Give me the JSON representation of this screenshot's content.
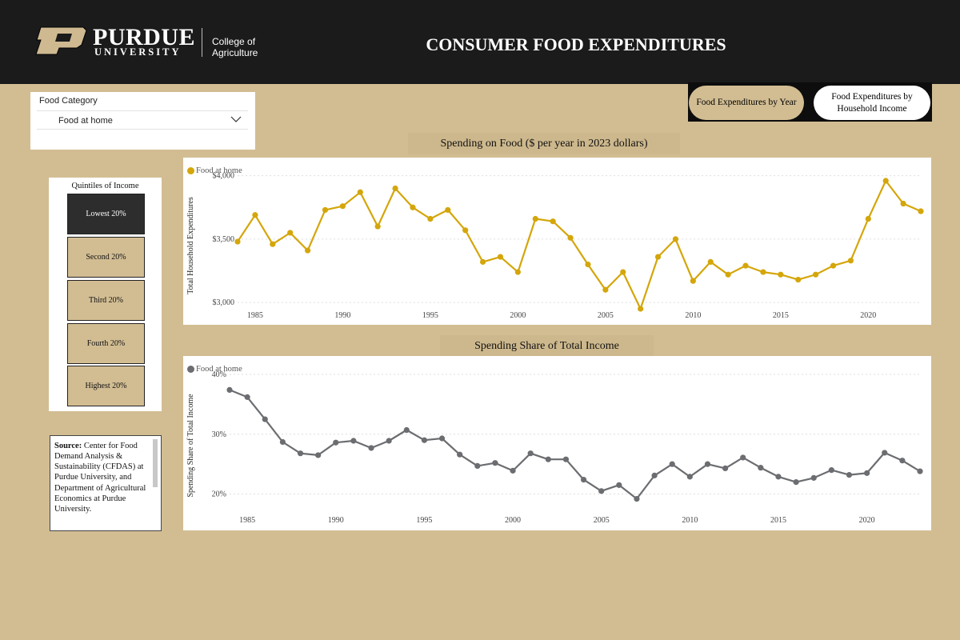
{
  "header": {
    "logo_wordmark": "PURDUE",
    "logo_sub": "UNIVERSITY",
    "college": "College of Agriculture",
    "title": "CONSUMER FOOD EXPENDITURES"
  },
  "nav": {
    "year_label": "Food Expenditures by Year",
    "income_label": "Food Expenditures by Household Income",
    "selected": "Food Expenditures by Year"
  },
  "filter": {
    "label": "Food Category",
    "value": "Food at home"
  },
  "quintiles": {
    "title": "Quintiles of Income",
    "items": [
      "Lowest 20%",
      "Second 20%",
      "Third 20%",
      "Fourth 20%",
      "Highest 20%"
    ],
    "selected": "Lowest 20%"
  },
  "source": {
    "label": "Source:",
    "text": "Center for Food Demand Analysis & Sustainability (CFDAS) at Purdue University, and Department of Agricultural Economics at Purdue University."
  },
  "colors": {
    "food_series": "#d4a60a",
    "share_series": "#6b6d70",
    "background": "#d2bd93",
    "header": "#1b1b1b"
  },
  "chart_data": [
    {
      "type": "line",
      "title": "Spending on Food ($ per year in 2023 dollars)",
      "ylabel": "Total Household Expenditures",
      "legend": [
        "Food at home"
      ],
      "legend_position": "top-left",
      "grid": true,
      "ylim": [
        2950,
        4080
      ],
      "yticks": [
        3000,
        3500,
        4000
      ],
      "ytick_labels": [
        "$3,000",
        "$3,500",
        "$4,000"
      ],
      "xticks": [
        1985,
        1990,
        1995,
        2000,
        2005,
        2010,
        2015,
        2020
      ],
      "x": [
        1984,
        1985,
        1986,
        1987,
        1988,
        1989,
        1990,
        1991,
        1992,
        1993,
        1994,
        1995,
        1996,
        1997,
        1998,
        1999,
        2000,
        2001,
        2002,
        2003,
        2004,
        2005,
        2006,
        2007,
        2008,
        2009,
        2010,
        2011,
        2012,
        2013,
        2014,
        2015,
        2016,
        2017,
        2018,
        2019,
        2020,
        2021,
        2022,
        2023
      ],
      "series": [
        {
          "name": "Food at home",
          "values": [
            3480,
            3690,
            3460,
            3550,
            3410,
            3730,
            3760,
            3870,
            3600,
            3900,
            3750,
            3660,
            3730,
            3570,
            3320,
            3360,
            3240,
            3660,
            3640,
            3510,
            3300,
            3100,
            3240,
            2950,
            3360,
            3500,
            3170,
            3320,
            3220,
            3290,
            3240,
            3220,
            3180,
            3220,
            3290,
            3330,
            3660,
            3960,
            3780,
            3720
          ]
        }
      ]
    },
    {
      "type": "line",
      "title": "Spending Share of Total Income",
      "ylabel": "Spending Share of Total Income",
      "legend": [
        "Food at home"
      ],
      "legend_position": "top-left",
      "grid": true,
      "ylim": [
        17,
        42
      ],
      "yticks": [
        20,
        30,
        40
      ],
      "ytick_labels": [
        "20%",
        "30%",
        "40%"
      ],
      "xticks": [
        1985,
        1990,
        1995,
        2000,
        2005,
        2010,
        2015,
        2020
      ],
      "x": [
        1984,
        1985,
        1986,
        1987,
        1988,
        1989,
        1990,
        1991,
        1992,
        1993,
        1994,
        1995,
        1996,
        1997,
        1998,
        1999,
        2000,
        2001,
        2002,
        2003,
        2004,
        2005,
        2006,
        2007,
        2008,
        2009,
        2010,
        2011,
        2012,
        2013,
        2014,
        2015,
        2016,
        2017,
        2018,
        2019,
        2020,
        2021,
        2022,
        2023
      ],
      "series": [
        {
          "name": "Food at home",
          "values": [
            37.4,
            36.2,
            32.5,
            28.7,
            26.8,
            26.5,
            28.6,
            28.9,
            27.7,
            28.9,
            30.7,
            29.0,
            29.3,
            26.6,
            24.7,
            25.2,
            23.9,
            26.8,
            25.8,
            25.8,
            22.4,
            20.5,
            21.5,
            19.2,
            23.1,
            25.0,
            22.9,
            25.0,
            24.3,
            26.1,
            24.4,
            22.9,
            22.0,
            22.7,
            24.0,
            23.2,
            23.5,
            26.9,
            25.6,
            23.8
          ]
        }
      ]
    }
  ]
}
